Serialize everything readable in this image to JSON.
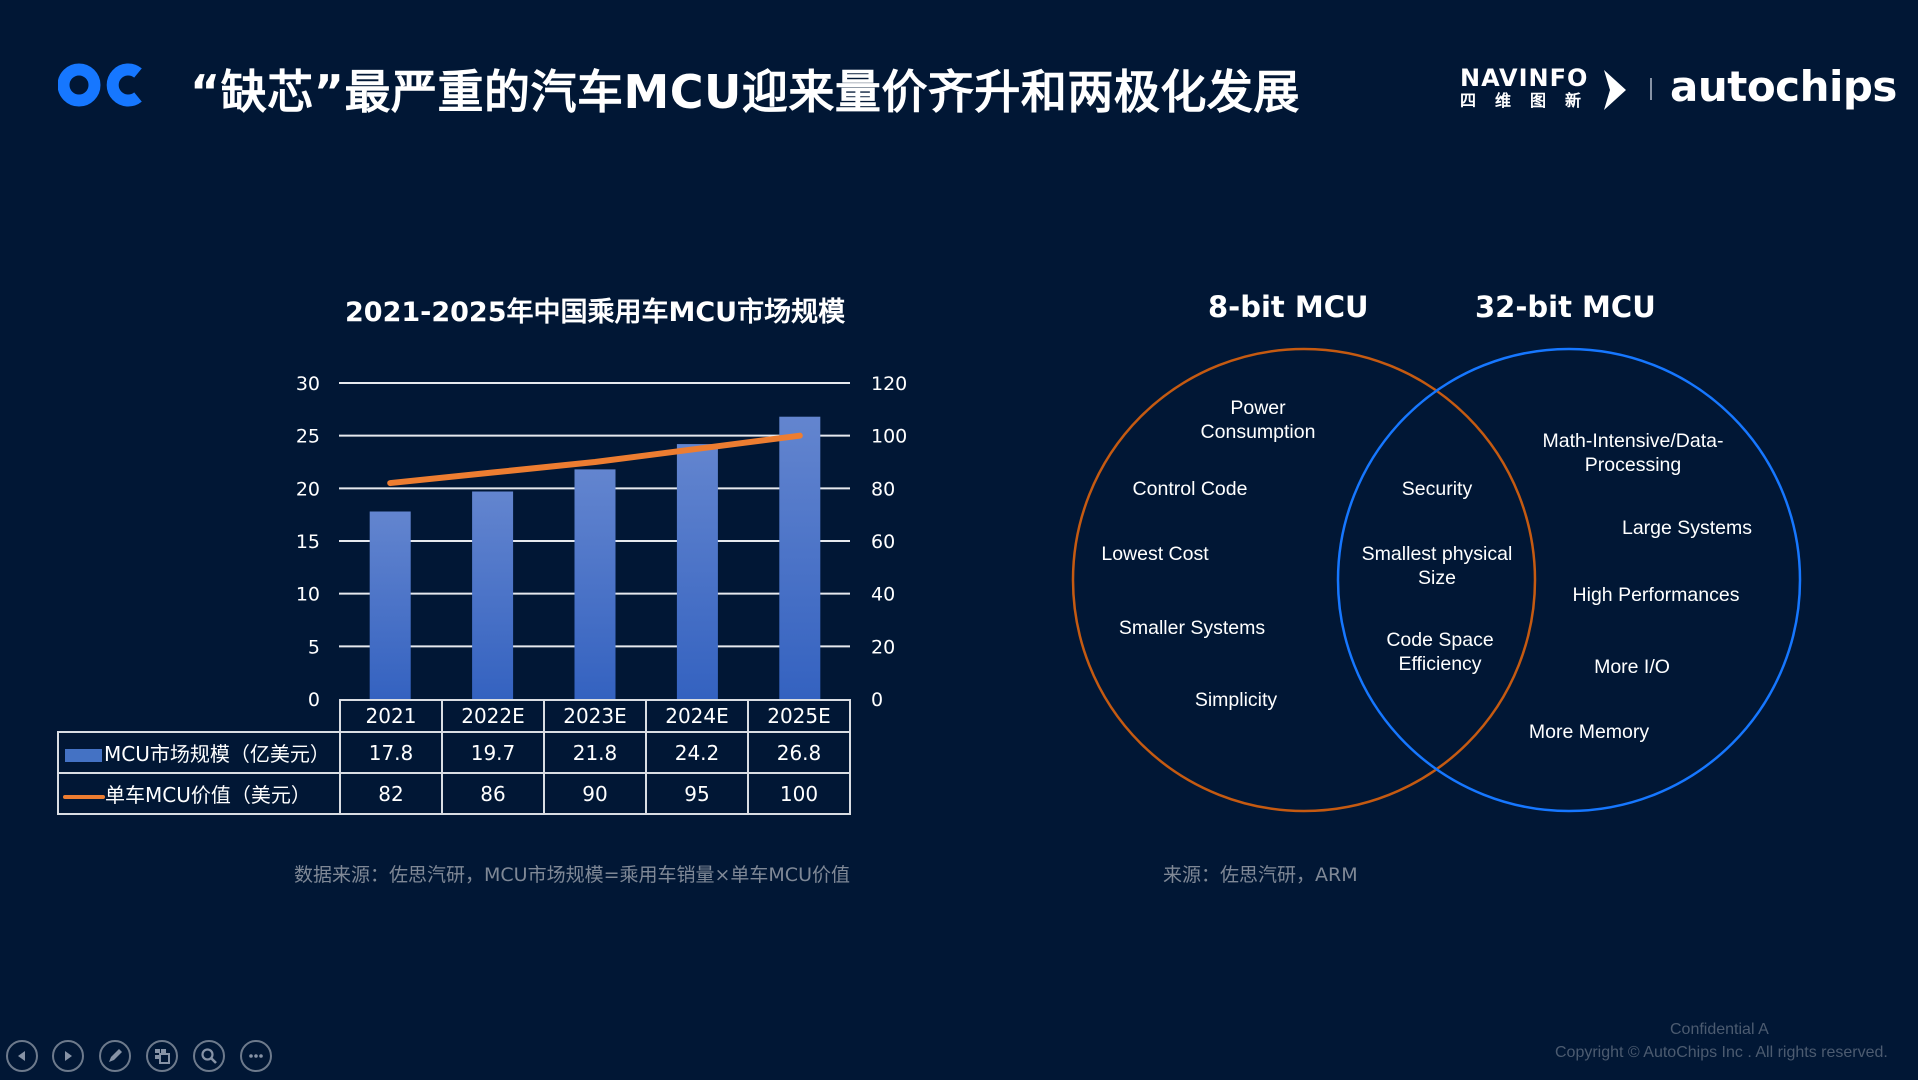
{
  "header": {
    "logo": "OC",
    "title": "“缺芯”最严重的汽车MCU迎来量价齐升和两极化发展",
    "partner_logo_en": "NAVINFO",
    "partner_logo_cn": "四维图新",
    "brand_logo": "autochips"
  },
  "colors": {
    "background": "#011735",
    "bar": "#4472c4",
    "line": "#ed7d31",
    "venn_8bit": "#c55a11",
    "venn_32bit": "#1677ff",
    "logo_blue": "#1677ff",
    "source_text": "#7f8896"
  },
  "chart_data": {
    "type": "bar",
    "title": "2021-2025年中国乘用车MCU市场规模",
    "categories": [
      "2021",
      "2022E",
      "2023E",
      "2024E",
      "2025E"
    ],
    "series": [
      {
        "name": "MCU市场规模（亿美元）",
        "type": "bar",
        "axis": "left",
        "values": [
          17.8,
          19.7,
          21.8,
          24.2,
          26.8
        ]
      },
      {
        "name": "单车MCU价值（美元）",
        "type": "line",
        "axis": "right",
        "values": [
          82,
          86,
          90,
          95,
          100
        ]
      }
    ],
    "left_axis": {
      "ticks": [
        0,
        5,
        10,
        15,
        20,
        25,
        30
      ],
      "ylim": [
        0,
        30
      ]
    },
    "right_axis": {
      "ticks": [
        0,
        20,
        40,
        60,
        80,
        100,
        120
      ],
      "ylim": [
        0,
        120
      ]
    },
    "grid": true,
    "legend_position": "data-table",
    "xlabel": "",
    "ylabel": ""
  },
  "table": {
    "columns": [
      "2021",
      "2022E",
      "2023E",
      "2024E",
      "2025E"
    ],
    "rows": [
      {
        "label": "MCU市场规模（亿美元）",
        "values": [
          "17.8",
          "19.7",
          "21.8",
          "24.2",
          "26.8"
        ]
      },
      {
        "label": "单车MCU价值（美元）",
        "values": [
          "82",
          "86",
          "90",
          "95",
          "100"
        ]
      }
    ]
  },
  "left_axis_labels": [
    "30",
    "25",
    "20",
    "15",
    "10",
    "5",
    "0"
  ],
  "right_axis_labels": [
    "120",
    "100",
    "80",
    "60",
    "40",
    "20",
    "0"
  ],
  "chart_source": "数据来源：佐思汽研，MCU市场规模=乘用车销量×单车MCU价值",
  "venn": {
    "left_title": "8-bit MCU",
    "right_title": "32-bit MCU",
    "left_items": [
      "Power\nConsumption",
      "Control Code",
      "Lowest Cost",
      "Smaller Systems",
      "Simplicity"
    ],
    "overlap_items": [
      "Security",
      "Smallest physical\nSize",
      "Code Space\nEfficiency"
    ],
    "right_items": [
      "Math-Intensive/Data-\nProcessing",
      "Large Systems",
      "High Performances",
      "More I/O",
      "More Memory"
    ],
    "source": "来源：佐思汽研，ARM"
  },
  "footer": {
    "confidential": "Confidential A",
    "copyright": "Copyright © AutoChips Inc . All rights reserved.",
    "nav_buttons": [
      "previous",
      "next",
      "pen",
      "slides",
      "zoom",
      "more"
    ]
  }
}
